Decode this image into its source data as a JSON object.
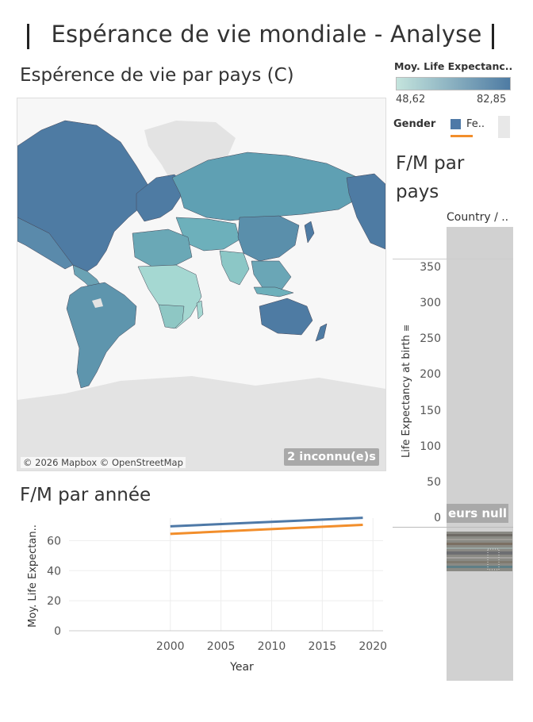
{
  "dashboard": {
    "title": "Espérance de vie mondiale - Analyse"
  },
  "map": {
    "title": "Espérence de vie par pays (C)",
    "credit": "© 2026 Mapbox © OpenStreetMap",
    "unknown_badge": "2 inconnu(e)s",
    "colors": {
      "ocean": "#f7f7f7",
      "land_low": "#c4e4dd",
      "land_high": "#4e7ba3",
      "no_data": "#e3e3e3"
    }
  },
  "legend": {
    "color_title": "Moy. Life Expectanc..",
    "min": "48,62",
    "max": "82,85",
    "gender_title": "Gender",
    "gender_item": "Fe..",
    "gender_colors": {
      "female": "#4e79a7",
      "male": "#f28e2b"
    }
  },
  "country_chart": {
    "title": "F/M par pays",
    "column_header": "Country / ..",
    "y_axis_label": "Life Expectancy at birth",
    "y_ticks": [
      "350",
      "300",
      "250",
      "200",
      "150",
      "100",
      "50",
      "0"
    ],
    "null_badge": "eurs null"
  },
  "chart_data": {
    "type": "line",
    "title": "F/M par année",
    "xlabel": "Year",
    "ylabel": "Moy. Life Expectan..",
    "xlim": [
      1990,
      2021
    ],
    "ylim": [
      0,
      75
    ],
    "x_ticks": [
      2000,
      2005,
      2010,
      2015,
      2020
    ],
    "y_ticks": [
      0,
      20,
      40,
      60
    ],
    "grid": true,
    "series": [
      {
        "color": "#4e79a7",
        "x": [
          2000,
          2019
        ],
        "values": [
          69.5,
          75.2
        ]
      },
      {
        "color": "#f28e2b",
        "x": [
          2000,
          2019
        ],
        "values": [
          64.5,
          70.5
        ]
      }
    ]
  }
}
